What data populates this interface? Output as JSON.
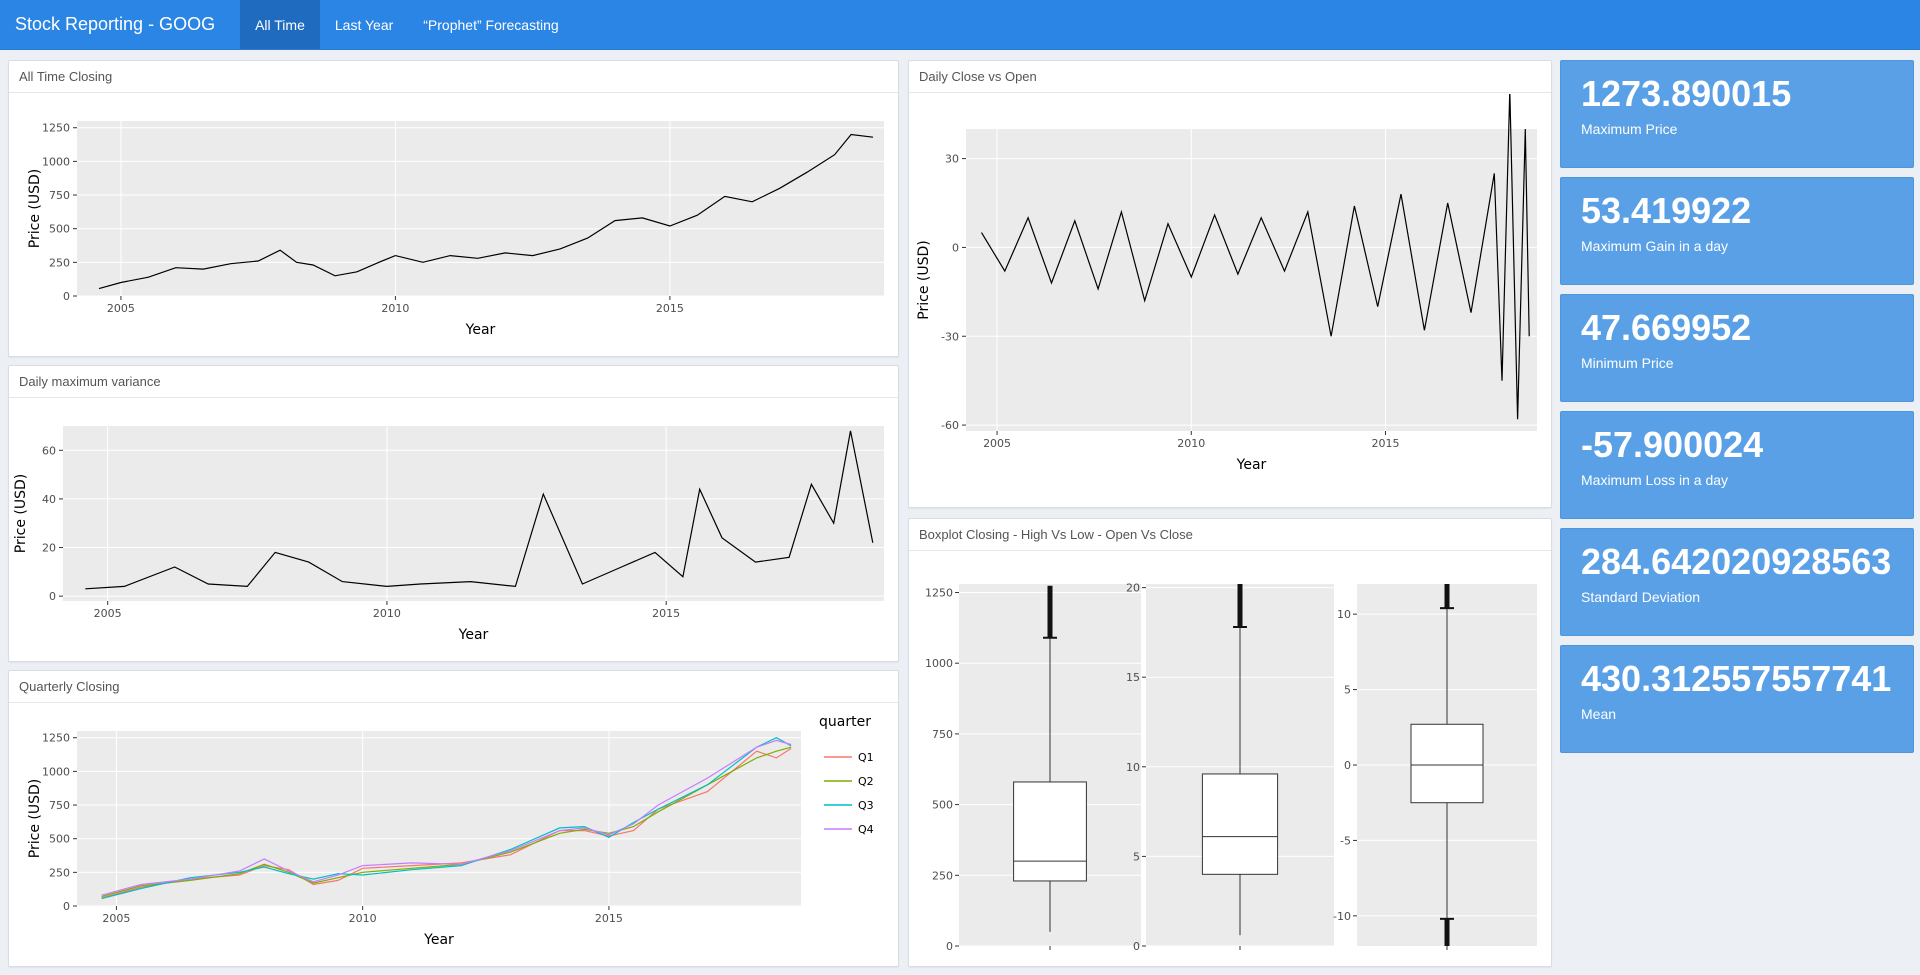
{
  "header": {
    "title": "Stock Reporting - GOOG",
    "tabs": [
      {
        "label": "All Time",
        "active": true
      },
      {
        "label": "Last Year",
        "active": false
      },
      {
        "label": "“Prophet” Forecasting",
        "active": false
      }
    ]
  },
  "colors": {
    "navbar": "#2b85e4",
    "tab_active": "#1f6bbf",
    "value_box": "#5aa0e6",
    "plot_panel": "#ebebeb",
    "q1": "#f8766d",
    "q2": "#7cae00",
    "q3": "#00bfc4",
    "q4": "#c77cff"
  },
  "cards": {
    "all_time": {
      "title": "All Time Closing"
    },
    "variance": {
      "title": "Daily maximum variance"
    },
    "quarterly": {
      "title": "Quarterly Closing"
    },
    "close_open": {
      "title": "Daily Close vs Open"
    },
    "boxplot": {
      "title": "Boxplot Closing - High Vs Low - Open Vs Close"
    }
  },
  "value_boxes": [
    {
      "value": "1273.890015",
      "label": "Maximum Price"
    },
    {
      "value": "53.419922",
      "label": "Maximum Gain in a day"
    },
    {
      "value": "47.669952",
      "label": "Minimum Price"
    },
    {
      "value": "-57.900024",
      "label": "Maximum Loss in a day"
    },
    {
      "value": "284.642020928563",
      "label": "Standard Deviation"
    },
    {
      "value": "430.312557557741",
      "label": "Mean"
    }
  ],
  "chart_data": [
    {
      "id": "all_time",
      "type": "line",
      "xlabel": "Year",
      "ylabel": "Price (USD)",
      "xlim": [
        2004.2,
        2018.9
      ],
      "ylim": [
        0,
        1300
      ],
      "xticks": [
        2005,
        2010,
        2015
      ],
      "yticks": [
        0,
        250,
        500,
        750,
        1000,
        1250
      ],
      "x": [
        2004.6,
        2005.0,
        2005.5,
        2006.0,
        2006.5,
        2007.0,
        2007.5,
        2007.9,
        2008.2,
        2008.5,
        2008.9,
        2009.3,
        2009.7,
        2010.0,
        2010.5,
        2011.0,
        2011.5,
        2012.0,
        2012.5,
        2013.0,
        2013.5,
        2014.0,
        2014.5,
        2015.0,
        2015.5,
        2016.0,
        2016.5,
        2017.0,
        2017.5,
        2018.0,
        2018.3,
        2018.7
      ],
      "y": [
        55,
        100,
        140,
        210,
        200,
        240,
        260,
        340,
        250,
        230,
        150,
        180,
        250,
        300,
        250,
        300,
        280,
        320,
        300,
        350,
        430,
        560,
        580,
        520,
        600,
        740,
        700,
        800,
        920,
        1050,
        1200,
        1180
      ]
    },
    {
      "id": "variance",
      "type": "line",
      "xlabel": "Year",
      "ylabel": "Price (USD)",
      "xlim": [
        2004.2,
        2018.9
      ],
      "ylim": [
        -2,
        70
      ],
      "xticks": [
        2005,
        2010,
        2015
      ],
      "yticks": [
        0,
        20,
        40,
        60
      ],
      "x": [
        2004.6,
        2005.3,
        2006.2,
        2006.8,
        2007.5,
        2008.0,
        2008.6,
        2009.2,
        2010.0,
        2010.6,
        2011.5,
        2012.3,
        2012.8,
        2013.5,
        2014.2,
        2014.8,
        2015.3,
        2015.6,
        2016.0,
        2016.6,
        2017.2,
        2017.6,
        2018.0,
        2018.3,
        2018.7
      ],
      "y": [
        3,
        4,
        12,
        5,
        4,
        18,
        14,
        6,
        4,
        5,
        6,
        4,
        42,
        5,
        12,
        18,
        8,
        44,
        24,
        14,
        16,
        46,
        30,
        68,
        22
      ]
    },
    {
      "id": "quarterly",
      "type": "line",
      "xlabel": "Year",
      "ylabel": "Price (USD)",
      "xlim": [
        2004.2,
        2018.9
      ],
      "ylim": [
        0,
        1300
      ],
      "xticks": [
        2005,
        2010,
        2015
      ],
      "yticks": [
        0,
        250,
        500,
        750,
        1000,
        1250
      ],
      "legend": {
        "title": "quarter",
        "position": "right"
      },
      "x": [
        2004.7,
        2005.5,
        2006.5,
        2007.5,
        2008.0,
        2008.5,
        2009.0,
        2009.5,
        2010.0,
        2011.0,
        2012.0,
        2013.0,
        2014.0,
        2014.5,
        2015.0,
        2015.5,
        2016.0,
        2017.0,
        2018.0,
        2018.4,
        2018.7
      ],
      "series": [
        {
          "name": "Q1",
          "values": [
            60,
            140,
            200,
            230,
            300,
            270,
            160,
            190,
            280,
            300,
            320,
            380,
            560,
            560,
            520,
            560,
            720,
            850,
            1150,
            1100,
            1170
          ]
        },
        {
          "name": "Q2",
          "values": [
            70,
            150,
            190,
            240,
            310,
            250,
            170,
            210,
            250,
            280,
            310,
            400,
            540,
            570,
            540,
            590,
            700,
            900,
            1100,
            1150,
            1180
          ]
        },
        {
          "name": "Q3",
          "values": [
            55,
            130,
            210,
            250,
            290,
            240,
            200,
            240,
            230,
            270,
            300,
            420,
            580,
            590,
            510,
            620,
            720,
            900,
            1180,
            1250,
            1190
          ]
        },
        {
          "name": "Q4",
          "values": [
            80,
            160,
            200,
            260,
            350,
            260,
            180,
            230,
            300,
            320,
            310,
            410,
            560,
            580,
            530,
            610,
            750,
            950,
            1180,
            1230,
            1200
          ]
        }
      ]
    },
    {
      "id": "close_open",
      "type": "line",
      "xlabel": "Year",
      "ylabel": "Price (USD)",
      "xlim": [
        2004.2,
        2018.9
      ],
      "ylim": [
        -62,
        40
      ],
      "xticks": [
        2005,
        2010,
        2015
      ],
      "yticks": [
        -60,
        -30,
        0,
        30
      ],
      "x": [
        2004.6,
        2005.2,
        2005.8,
        2006.4,
        2007.0,
        2007.6,
        2008.2,
        2008.8,
        2009.4,
        2010.0,
        2010.6,
        2011.2,
        2011.8,
        2012.4,
        2013.0,
        2013.6,
        2014.2,
        2014.8,
        2015.4,
        2016.0,
        2016.6,
        2017.2,
        2017.8,
        2018.0,
        2018.2,
        2018.4,
        2018.6,
        2018.7
      ],
      "y": [
        5,
        -8,
        10,
        -12,
        9,
        -14,
        12,
        -18,
        8,
        -10,
        11,
        -9,
        10,
        -8,
        12,
        -30,
        14,
        -20,
        18,
        -28,
        15,
        -22,
        25,
        -45,
        53,
        -58,
        40,
        -30
      ]
    },
    {
      "id": "box_closing",
      "type": "box",
      "ylim": [
        0,
        1280
      ],
      "yticks": [
        0,
        250,
        500,
        750,
        1000,
        1250
      ],
      "stats": {
        "min": 50,
        "q1": 230,
        "median": 300,
        "q3": 580,
        "whisker_high": 1090,
        "max": 1274
      }
    },
    {
      "id": "box_high_low",
      "type": "box",
      "ylim": [
        0,
        20.2
      ],
      "yticks": [
        0,
        5,
        10,
        15,
        20
      ],
      "stats": {
        "min": 0.6,
        "q1": 4.0,
        "median": 6.1,
        "q3": 9.6,
        "whisker_high": 17.8,
        "max": 20.2
      }
    },
    {
      "id": "box_open_close",
      "type": "box",
      "ylim": [
        -12,
        12
      ],
      "yticks": [
        -10,
        -5,
        0,
        5,
        10
      ],
      "stats": {
        "min": -12,
        "whisker_low": -10.2,
        "q1": -2.5,
        "median": 0,
        "q3": 2.7,
        "whisker_high": 10.4,
        "max": 12
      }
    }
  ]
}
